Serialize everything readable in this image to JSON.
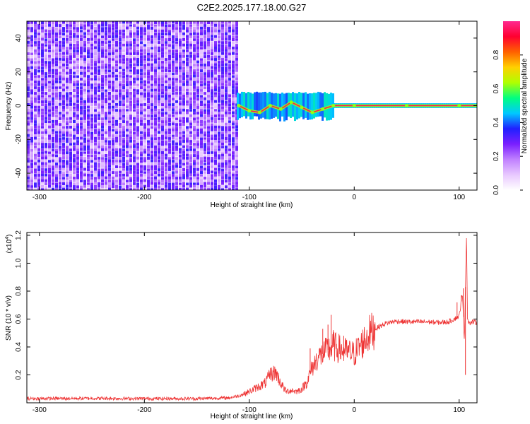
{
  "figure": {
    "title": "C2E2.2025.177.18.00.G27"
  },
  "chart_data": [
    {
      "type": "heatmap",
      "xlabel": "Height of straight line (km)",
      "ylabel": "Frequency (Hz)",
      "xlim": [
        -312,
        117
      ],
      "ylim": [
        -50,
        50
      ],
      "xticks": [
        -300,
        -200,
        -100,
        0,
        100
      ],
      "yticks": [
        -40,
        -20,
        0,
        20,
        40
      ],
      "colorbar": {
        "label": "Normalized spectral amplitude",
        "range": [
          0.0,
          1.0
        ],
        "ticks": [
          0.0,
          0.2,
          0.4,
          0.6,
          0.8
        ],
        "tick_labels": [
          "0.0",
          "0.2",
          "0.4",
          "0.6",
          "0.8"
        ],
        "colormap": [
          "#ffffff",
          "#e8c8ff",
          "#c080ff",
          "#7a1fff",
          "#2020ff",
          "#00c8ff",
          "#00ff80",
          "#b0ff00",
          "#ffd000",
          "#ff6000",
          "#ff0030",
          "#ff2a90"
        ]
      },
      "regions": [
        {
          "x": [
            -312,
            -112
          ],
          "freq": [
            -50,
            50
          ],
          "amplitude": 0.3,
          "note_kind": "broadband noise"
        },
        {
          "x": [
            -112,
            -20
          ],
          "freq": [
            -7,
            7
          ],
          "amplitude": 0.5
        },
        {
          "x": [
            -20,
            117
          ],
          "freq": [
            -1,
            1
          ],
          "amplitude": 0.9
        }
      ],
      "ridge": [
        {
          "x": -110,
          "f": 0
        },
        {
          "x": -100,
          "f": -3
        },
        {
          "x": -90,
          "f": -4
        },
        {
          "x": -80,
          "f": 0
        },
        {
          "x": -70,
          "f": -2
        },
        {
          "x": -60,
          "f": 2
        },
        {
          "x": -50,
          "f": -1
        },
        {
          "x": -40,
          "f": -4
        },
        {
          "x": -30,
          "f": -2
        },
        {
          "x": -20,
          "f": 0
        },
        {
          "x": 0,
          "f": 0
        },
        {
          "x": 50,
          "f": 0
        },
        {
          "x": 100,
          "f": 0
        },
        {
          "x": 117,
          "f": 0
        }
      ]
    },
    {
      "type": "line",
      "xlabel": "Height of straight line (km)",
      "ylabel": "SNR (10 * v/v)",
      "yscale_label": "(x10",
      "yscale_exp": "4",
      "xlim": [
        -312,
        117
      ],
      "ylim": [
        0,
        12200
      ],
      "xticks": [
        -300,
        -200,
        -100,
        0,
        100
      ],
      "yticks": [
        2000,
        4000,
        6000,
        8000,
        10000,
        12000
      ],
      "ytick_labels": [
        "0.2",
        "0.4",
        "0.6",
        "0.8",
        "1.0",
        "1.2"
      ],
      "color": "#ee3333",
      "series": [
        {
          "x": [
            -312,
            -250,
            -200,
            -150,
            -120,
            -110,
            -100,
            -95,
            -90,
            -85,
            -80,
            -75,
            -70,
            -65,
            -60,
            -55,
            -50,
            -45,
            -40,
            -35,
            -30,
            -25,
            -20,
            -15,
            -10,
            -5,
            0,
            5,
            10,
            15,
            20,
            25,
            30,
            40,
            50,
            60,
            70,
            80,
            90,
            95,
            100,
            103,
            105,
            107,
            108,
            110,
            113,
            117
          ],
          "values": [
            300,
            320,
            300,
            300,
            350,
            500,
            800,
            1000,
            1200,
            1400,
            2000,
            2200,
            1400,
            800,
            900,
            800,
            1000,
            1500,
            2500,
            3200,
            3500,
            3800,
            4000,
            3900,
            3700,
            3600,
            3500,
            4000,
            4500,
            5000,
            5300,
            5500,
            5700,
            5850,
            5800,
            5800,
            5800,
            5750,
            5800,
            6000,
            6200,
            7800,
            4500,
            12100,
            6000,
            5700,
            5800,
            5750
          ]
        }
      ],
      "spikes": [
        {
          "x": -80,
          "v": 2500
        },
        {
          "x": -75,
          "v": 2400
        },
        {
          "x": -42,
          "v": 3900
        },
        {
          "x": -30,
          "v": 5300
        },
        {
          "x": -25,
          "v": 5600
        },
        {
          "x": -22,
          "v": 6300
        },
        {
          "x": -20,
          "v": 5200
        },
        {
          "x": -10,
          "v": 4800
        },
        {
          "x": 98,
          "v": 7200
        },
        {
          "x": 102,
          "v": 7700
        },
        {
          "x": 104,
          "v": 8200
        },
        {
          "x": 106,
          "v": 2000
        },
        {
          "x": 107,
          "v": 12100
        }
      ]
    }
  ]
}
